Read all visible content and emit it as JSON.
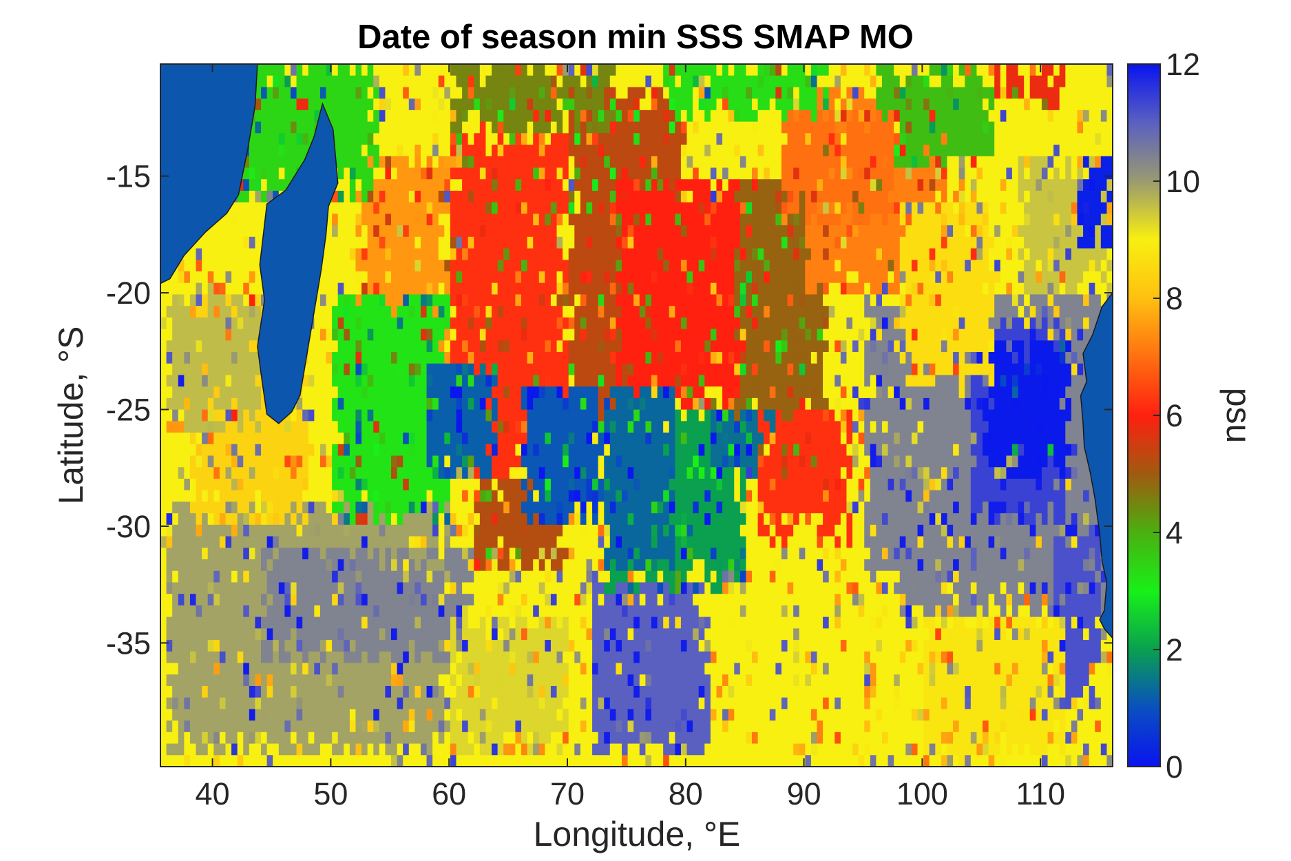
{
  "chart_data": {
    "type": "heatmap",
    "title": "Date of season min SSS SMAP MO",
    "xlabel": "Longitude, °E",
    "ylabel": "Latitude, °S",
    "colorbar_label": "psu",
    "xlim": [
      35.6,
      116.1
    ],
    "ylim": [
      -40.3,
      -10.2
    ],
    "xticks": [
      40,
      50,
      60,
      70,
      80,
      90,
      100,
      110
    ],
    "xtick_labels": [
      "40",
      "50",
      "60",
      "70",
      "80",
      "90",
      "100",
      "110"
    ],
    "yticks": [
      -15,
      -20,
      -25,
      -30,
      -35
    ],
    "ytick_labels": [
      "-15",
      "-20",
      "-25",
      "-30",
      "-35"
    ],
    "clim": [
      0,
      12
    ],
    "cticks": [
      0,
      2,
      4,
      6,
      8,
      10,
      12
    ],
    "ctick_labels": [
      "0",
      "2",
      "4",
      "6",
      "8",
      "10",
      "12"
    ],
    "colormap_stops": [
      {
        "v": 0,
        "color": "#0a14f0"
      },
      {
        "v": 1,
        "color": "#0a4fc0"
      },
      {
        "v": 2,
        "color": "#0aa050"
      },
      {
        "v": 3,
        "color": "#18f018"
      },
      {
        "v": 4,
        "color": "#4ab010"
      },
      {
        "v": 5,
        "color": "#a05a10"
      },
      {
        "v": 6,
        "color": "#ff2010"
      },
      {
        "v": 7,
        "color": "#ff7010"
      },
      {
        "v": 8,
        "color": "#ffc010"
      },
      {
        "v": 9,
        "color": "#f8f010"
      },
      {
        "v": 10,
        "color": "#9a9a70"
      },
      {
        "v": 11,
        "color": "#5a60c0"
      },
      {
        "v": 12,
        "color": "#0a14f0"
      }
    ],
    "land_color": "#0c56ae",
    "grid_resolution_deg": 0.5,
    "regions": [
      {
        "lon": [
          35.6,
          116.1
        ],
        "lat": [
          -40.3,
          -10.2
        ],
        "value": 9.0
      },
      {
        "lon": [
          36.0,
          60.0
        ],
        "lat": [
          -40.3,
          -29.0
        ],
        "value": 9.9
      },
      {
        "lon": [
          72.0,
          82.0
        ],
        "lat": [
          -40.3,
          -32.5
        ],
        "value": 11.0
      },
      {
        "lon": [
          44.0,
          62.0
        ],
        "lat": [
          -36.0,
          -31.0
        ],
        "value": 10.4
      },
      {
        "lon": [
          95.0,
          116.1
        ],
        "lat": [
          -34.0,
          -20.0
        ],
        "value": 10.4
      },
      {
        "lon": [
          104.0,
          112.0
        ],
        "lat": [
          -30.0,
          -21.0
        ],
        "value": 11.4
      },
      {
        "lon": [
          105.0,
          112.5
        ],
        "lat": [
          -28.0,
          -22.0
        ],
        "value": 0.1
      },
      {
        "lon": [
          111.0,
          115.0
        ],
        "lat": [
          -38.0,
          -30.0
        ],
        "value": 11.2
      },
      {
        "lon": [
          108.0,
          116.1
        ],
        "lat": [
          -20.0,
          -14.0
        ],
        "value": 9.5
      },
      {
        "lon": [
          113.0,
          116.1
        ],
        "lat": [
          -18.0,
          -14.0
        ],
        "value": 0.2
      },
      {
        "lon": [
          38.0,
          48.0
        ],
        "lat": [
          -30.0,
          -20.0
        ],
        "value": 8.4
      },
      {
        "lon": [
          52.0,
          60.0
        ],
        "lat": [
          -24.0,
          -14.0
        ],
        "value": 7.5
      },
      {
        "lon": [
          60.0,
          70.0
        ],
        "lat": [
          -28.0,
          -13.0
        ],
        "value": 6.2
      },
      {
        "lon": [
          70.0,
          80.0
        ],
        "lat": [
          -26.0,
          -11.0
        ],
        "value": 5.3
      },
      {
        "lon": [
          74.0,
          86.0
        ],
        "lat": [
          -25.0,
          -15.0
        ],
        "value": 6.0
      },
      {
        "lon": [
          84.0,
          92.0
        ],
        "lat": [
          -26.0,
          -15.0
        ],
        "value": 4.9
      },
      {
        "lon": [
          90.0,
          102.0
        ],
        "lat": [
          -20.0,
          -11.0
        ],
        "value": 7.2
      },
      {
        "lon": [
          98.0,
          106.0
        ],
        "lat": [
          -24.0,
          -16.0
        ],
        "value": 8.6
      },
      {
        "lon": [
          50.0,
          60.0
        ],
        "lat": [
          -30.0,
          -20.0
        ],
        "value": 3.2
      },
      {
        "lon": [
          62.0,
          70.0
        ],
        "lat": [
          -32.0,
          -28.0
        ],
        "value": 5.2
      },
      {
        "lon": [
          73.0,
          85.0
        ],
        "lat": [
          -33.0,
          -25.0
        ],
        "value": 2.0
      },
      {
        "lon": [
          58.0,
          64.0
        ],
        "lat": [
          -28.0,
          -23.0
        ],
        "value": 1.2
      },
      {
        "lon": [
          66.0,
          73.0
        ],
        "lat": [
          -30.0,
          -24.0
        ],
        "value": 1.1
      },
      {
        "lon": [
          73.0,
          79.0
        ],
        "lat": [
          -32.0,
          -24.0
        ],
        "value": 1.3
      },
      {
        "lon": [
          82.0,
          88.0
        ],
        "lat": [
          -28.0,
          -25.0
        ],
        "value": 1.4
      },
      {
        "lon": [
          86.0,
          94.0
        ],
        "lat": [
          -31.0,
          -25.0
        ],
        "value": 6.2
      },
      {
        "lon": [
          40.0,
          54.0
        ],
        "lat": [
          -16.0,
          -10.2
        ],
        "value": 3.4
      },
      {
        "lon": [
          60.0,
          74.0
        ],
        "lat": [
          -13.0,
          -10.2
        ],
        "value": 4.5
      },
      {
        "lon": [
          78.0,
          92.0
        ],
        "lat": [
          -12.5,
          -10.2
        ],
        "value": 3.3
      },
      {
        "lon": [
          96.0,
          106.0
        ],
        "lat": [
          -14.5,
          -10.2
        ],
        "value": 3.8
      },
      {
        "lon": [
          106.0,
          112.0
        ],
        "lat": [
          -12.0,
          -10.2
        ],
        "value": 5.8
      },
      {
        "lon": [
          88.0,
          98.0
        ],
        "lat": [
          -17.0,
          -12.0
        ],
        "value": 7.0
      },
      {
        "lon": [
          36.0,
          44.0
        ],
        "lat": [
          -26.0,
          -20.0
        ],
        "value": 9.6
      },
      {
        "lon": [
          82.0,
          98.0
        ],
        "lat": [
          -38.0,
          -32.0
        ],
        "value": 9.0
      },
      {
        "lon": [
          100.0,
          112.0
        ],
        "lat": [
          -40.3,
          -34.0
        ],
        "value": 8.8
      },
      {
        "lon": [
          60.0,
          70.0
        ],
        "lat": [
          -40.3,
          -34.0
        ],
        "value": 9.3
      }
    ],
    "land_masks": [
      {
        "name": "Africa",
        "outline": [
          [
            35.6,
            -10.2
          ],
          [
            43.8,
            -10.2
          ],
          [
            43.6,
            -12.0
          ],
          [
            43.0,
            -13.8
          ],
          [
            42.2,
            -15.8
          ],
          [
            41.2,
            -16.6
          ],
          [
            39.4,
            -17.4
          ],
          [
            37.6,
            -18.4
          ],
          [
            36.4,
            -19.4
          ],
          [
            35.6,
            -19.6
          ]
        ]
      },
      {
        "name": "Madagascar",
        "outline": [
          [
            49.3,
            -11.9
          ],
          [
            50.2,
            -13.0
          ],
          [
            50.6,
            -15.3
          ],
          [
            49.8,
            -16.3
          ],
          [
            49.6,
            -17.5
          ],
          [
            49.2,
            -19.0
          ],
          [
            48.6,
            -20.8
          ],
          [
            48.0,
            -22.6
          ],
          [
            47.4,
            -24.4
          ],
          [
            46.7,
            -25.1
          ],
          [
            45.6,
            -25.6
          ],
          [
            44.6,
            -25.2
          ],
          [
            44.2,
            -23.8
          ],
          [
            43.8,
            -22.3
          ],
          [
            44.4,
            -20.3
          ],
          [
            44.0,
            -18.8
          ],
          [
            44.6,
            -16.2
          ],
          [
            46.2,
            -15.6
          ],
          [
            47.8,
            -14.3
          ],
          [
            48.6,
            -13.3
          ]
        ]
      },
      {
        "name": "Australia",
        "outline": [
          [
            116.1,
            -20.0
          ],
          [
            115.2,
            -20.6
          ],
          [
            114.4,
            -21.8
          ],
          [
            113.6,
            -22.6
          ],
          [
            113.9,
            -23.8
          ],
          [
            113.4,
            -24.4
          ],
          [
            113.6,
            -25.6
          ],
          [
            113.7,
            -26.6
          ],
          [
            114.2,
            -27.7
          ],
          [
            114.6,
            -28.8
          ],
          [
            115.0,
            -30.3
          ],
          [
            115.2,
            -31.5
          ],
          [
            115.6,
            -32.4
          ],
          [
            115.4,
            -33.6
          ],
          [
            115.0,
            -34.0
          ],
          [
            115.4,
            -34.4
          ],
          [
            116.1,
            -34.8
          ]
        ]
      }
    ]
  }
}
